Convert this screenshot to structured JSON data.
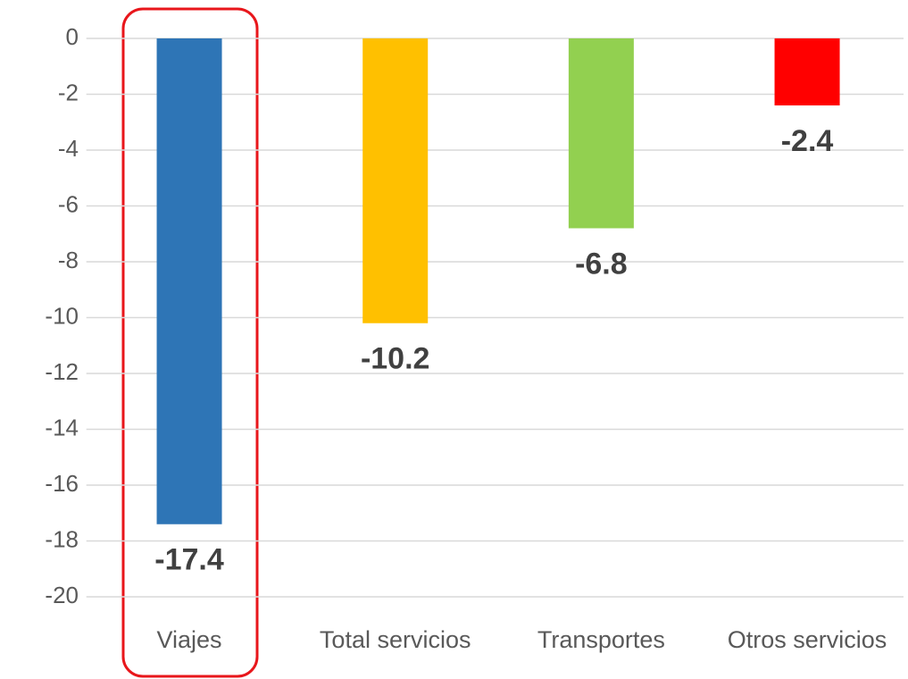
{
  "chart_data": {
    "type": "bar",
    "categories": [
      "Viajes",
      "Total servicios",
      "Transportes",
      "Otros servicios"
    ],
    "values": [
      -17.4,
      -10.2,
      -6.8,
      -2.4
    ],
    "colors": [
      "#2e75b6",
      "#ffc000",
      "#92d050",
      "#ff0000"
    ],
    "ylim": [
      -20,
      0
    ],
    "yticks": [
      0,
      -2,
      -4,
      -6,
      -8,
      -10,
      -12,
      -14,
      -16,
      -18,
      -20
    ],
    "grid": true
  }
}
